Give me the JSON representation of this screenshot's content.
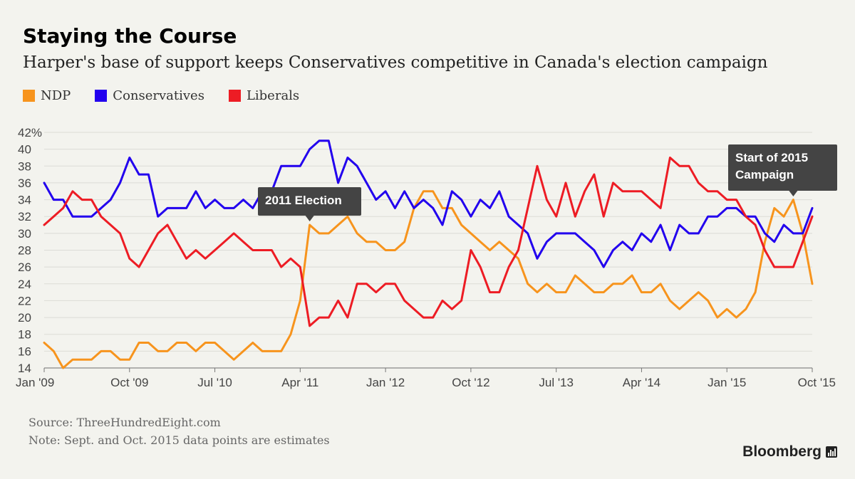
{
  "title": "Staying the Course",
  "subtitle": "Harper's base of support keeps Conservatives competitive in Canada's election campaign",
  "legend": [
    {
      "label": "NDP",
      "color": "#f7941d"
    },
    {
      "label": "Conservatives",
      "color": "#2200ee"
    },
    {
      "label": "Liberals",
      "color": "#ed1c24"
    }
  ],
  "source": "Source: ThreeHundredEight.com",
  "note": "Note: Sept. and Oct. 2015 data points are estimates",
  "brand": "Bloomberg",
  "chart_data": {
    "type": "line",
    "title": "Staying the Course",
    "xlabel": "",
    "ylabel": "",
    "ylim": [
      14,
      42
    ],
    "yticks": [
      14,
      16,
      18,
      20,
      22,
      24,
      26,
      28,
      30,
      32,
      34,
      36,
      38,
      40,
      42
    ],
    "ytick_labels": [
      "14",
      "16",
      "18",
      "20",
      "22",
      "24",
      "26",
      "28",
      "30",
      "32",
      "34",
      "36",
      "38",
      "40",
      "42%"
    ],
    "xtick_labels": [
      "Jan '09",
      "Oct '09",
      "Jul '10",
      "Apr '11",
      "Jan '12",
      "Oct '12",
      "Jul '13",
      "Apr '14",
      "Jan '15",
      "Oct '15"
    ],
    "x_start": "Jan '09",
    "x_end": "Oct '15",
    "grid": true,
    "series": [
      {
        "name": "NDP",
        "color": "#f7941d",
        "values": [
          17,
          16,
          14,
          15,
          15,
          15,
          16,
          16,
          15,
          15,
          17,
          17,
          16,
          16,
          17,
          17,
          16,
          17,
          17,
          16,
          15,
          16,
          17,
          16,
          16,
          16,
          18,
          22,
          31,
          30,
          30,
          31,
          32,
          30,
          29,
          29,
          28,
          28,
          29,
          33,
          35,
          35,
          33,
          33,
          31,
          30,
          29,
          28,
          29,
          28,
          27,
          24,
          23,
          24,
          23,
          23,
          25,
          24,
          23,
          23,
          24,
          24,
          25,
          23,
          23,
          24,
          22,
          21,
          22,
          23,
          22,
          20,
          21,
          20,
          21,
          23,
          29,
          33,
          32,
          34,
          30,
          24
        ]
      },
      {
        "name": "Conservatives",
        "color": "#2200ee",
        "values": [
          36,
          34,
          34,
          32,
          32,
          32,
          33,
          34,
          36,
          39,
          37,
          37,
          32,
          33,
          33,
          33,
          35,
          33,
          34,
          33,
          33,
          34,
          33,
          35,
          35,
          38,
          38,
          38,
          40,
          41,
          41,
          36,
          39,
          38,
          36,
          34,
          35,
          33,
          35,
          33,
          34,
          33,
          31,
          35,
          34,
          32,
          34,
          33,
          35,
          32,
          31,
          30,
          27,
          29,
          30,
          30,
          30,
          29,
          28,
          26,
          28,
          29,
          28,
          30,
          29,
          31,
          28,
          31,
          30,
          30,
          32,
          32,
          33,
          33,
          32,
          32,
          30,
          29,
          31,
          30,
          30,
          33
        ]
      },
      {
        "name": "Liberals",
        "color": "#ed1c24",
        "values": [
          31,
          32,
          33,
          35,
          34,
          34,
          32,
          31,
          30,
          27,
          26,
          28,
          30,
          31,
          29,
          27,
          28,
          27,
          28,
          29,
          30,
          29,
          28,
          28,
          28,
          26,
          27,
          26,
          19,
          20,
          20,
          22,
          20,
          24,
          24,
          23,
          24,
          24,
          22,
          21,
          20,
          20,
          22,
          21,
          22,
          28,
          26,
          23,
          23,
          26,
          28,
          33,
          38,
          34,
          32,
          36,
          32,
          35,
          37,
          32,
          36,
          35,
          35,
          35,
          34,
          33,
          39,
          38,
          38,
          36,
          35,
          35,
          34,
          34,
          32,
          31,
          28,
          26,
          26,
          26,
          29,
          32
        ]
      }
    ],
    "annotations": [
      {
        "label": "2011 Election",
        "x_index": 28
      },
      {
        "label": "Start of 2015",
        "label2": "Campaign",
        "x_index": 79
      }
    ]
  }
}
